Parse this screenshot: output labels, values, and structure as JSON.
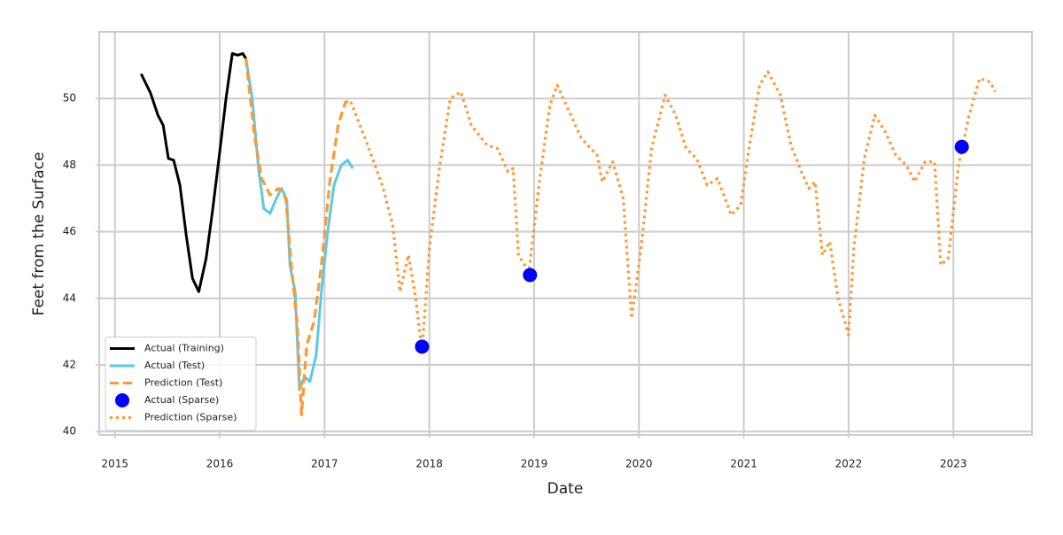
{
  "chart_data": {
    "type": "line",
    "xlabel": "Date",
    "ylabel": "Feet from the Surface",
    "xlim": [
      2014.85,
      2023.75
    ],
    "xticks": [
      2015,
      2016,
      2017,
      2018,
      2019,
      2020,
      2021,
      2022,
      2023
    ],
    "ylim": [
      39.9,
      52
    ],
    "yticks": [
      40,
      42,
      44,
      46,
      48,
      50
    ],
    "grid": true,
    "legend": "lower left",
    "series": [
      {
        "name": "Actual (Training)",
        "color": "#000000",
        "style": "solid",
        "x": [
          2015.25,
          2015.34,
          2015.41,
          2015.46,
          2015.51,
          2015.56,
          2015.62,
          2015.68,
          2015.74,
          2015.8,
          2015.87,
          2015.93,
          2016.0,
          2016.06,
          2016.12,
          2016.17,
          2016.22,
          2016.25
        ],
        "values": [
          50.74,
          50.16,
          49.5,
          49.2,
          48.2,
          48.15,
          47.4,
          45.9,
          44.6,
          44.2,
          45.2,
          46.6,
          48.4,
          50.0,
          51.35,
          51.3,
          51.35,
          51.2
        ]
      },
      {
        "name": "Actual (Test)",
        "color": "#5bc8e8",
        "style": "solid",
        "x": [
          2016.25,
          2016.31,
          2016.37,
          2016.42,
          2016.48,
          2016.54,
          2016.59,
          2016.64,
          2016.67,
          2016.72,
          2016.76,
          2016.81,
          2016.86,
          2016.92,
          2016.97,
          2017.03,
          2017.09,
          2017.16,
          2017.22,
          2017.27
        ],
        "values": [
          51.2,
          50.0,
          47.9,
          46.7,
          46.55,
          47.0,
          47.3,
          46.95,
          44.97,
          44.2,
          41.25,
          41.65,
          41.5,
          42.3,
          44.2,
          46.0,
          47.4,
          48.0,
          48.15,
          47.9
        ]
      },
      {
        "name": "Prediction (Test)",
        "color": "#ff9933",
        "style": "dashed",
        "x": [
          2016.25,
          2016.33,
          2016.4,
          2016.48,
          2016.56,
          2016.63,
          2016.68,
          2016.74,
          2016.78,
          2016.83,
          2016.9,
          2016.97,
          2017.05,
          2017.13,
          2017.2,
          2017.25
        ],
        "values": [
          51.2,
          48.9,
          47.6,
          47.1,
          47.3,
          47.0,
          45.1,
          43.2,
          40.5,
          42.6,
          43.3,
          45.0,
          47.5,
          49.2,
          49.9,
          49.9
        ]
      },
      {
        "name": "Actual (Sparse)",
        "color": "#0000ff",
        "style": "marker",
        "x": [
          2017.93,
          2018.96,
          2023.08
        ],
        "values": [
          42.55,
          44.7,
          48.55
        ]
      },
      {
        "name": "Prediction (Sparse)",
        "color": "#ff9933",
        "style": "dotted",
        "x": [
          2017.25,
          2017.4,
          2017.55,
          2017.65,
          2017.72,
          2017.8,
          2017.87,
          2017.93,
          2018.0,
          2018.1,
          2018.2,
          2018.3,
          2018.4,
          2018.55,
          2018.65,
          2018.75,
          2018.8,
          2018.85,
          2018.95,
          2019.05,
          2019.15,
          2019.22,
          2019.35,
          2019.45,
          2019.6,
          2019.65,
          2019.75,
          2019.85,
          2019.93,
          2020.02,
          2020.12,
          2020.25,
          2020.35,
          2020.45,
          2020.55,
          2020.65,
          2020.75,
          2020.88,
          2020.97,
          2021.05,
          2021.15,
          2021.23,
          2021.35,
          2021.45,
          2021.55,
          2021.62,
          2021.68,
          2021.75,
          2021.82,
          2021.9,
          2022.0,
          2022.05,
          2022.15,
          2022.25,
          2022.35,
          2022.45,
          2022.55,
          2022.63,
          2022.73,
          2022.82,
          2022.88,
          2022.95,
          2023.05,
          2023.15,
          2023.25,
          2023.35,
          2023.4
        ],
        "values": [
          49.9,
          48.7,
          47.4,
          46.2,
          44.2,
          45.3,
          44.0,
          42.4,
          45.5,
          48.0,
          50.0,
          50.2,
          49.2,
          48.6,
          48.5,
          47.8,
          47.9,
          45.3,
          44.8,
          47.5,
          49.8,
          50.4,
          49.5,
          48.8,
          48.3,
          47.5,
          48.1,
          47.0,
          43.4,
          45.5,
          48.5,
          50.1,
          49.5,
          48.5,
          48.2,
          47.4,
          47.6,
          46.5,
          46.8,
          48.5,
          50.4,
          50.8,
          50.1,
          48.6,
          47.8,
          47.3,
          47.5,
          45.3,
          45.7,
          44.0,
          42.9,
          45.5,
          48.2,
          49.5,
          49.0,
          48.3,
          48.0,
          47.5,
          48.1,
          48.1,
          45.0,
          45.2,
          48.0,
          49.5,
          50.6,
          50.5,
          50.2
        ]
      }
    ]
  }
}
